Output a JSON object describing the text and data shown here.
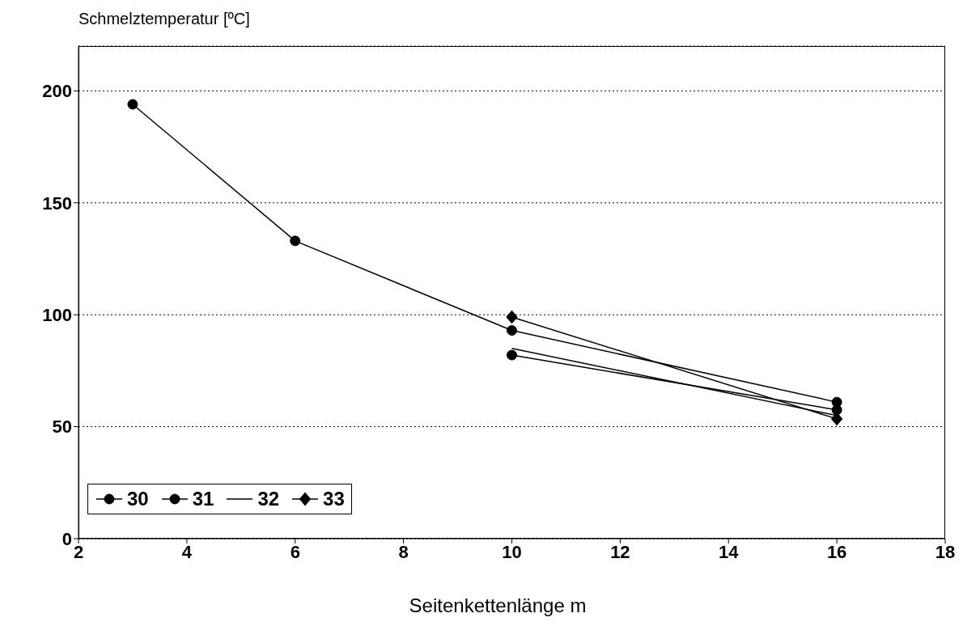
{
  "chart_data": {
    "type": "line",
    "xlabel": "Seitenkettenlänge m",
    "ylabel": "Schmelztemperatur [ºC]",
    "xlim": [
      2,
      18
    ],
    "xticks": [
      2,
      4,
      6,
      8,
      10,
      12,
      14,
      16,
      18
    ],
    "ylim": [
      0,
      220
    ],
    "yticks": [
      0,
      50,
      100,
      150,
      200
    ],
    "grid": "y",
    "legend": "bottom left",
    "line_style": "solid",
    "series": [
      {
        "name": "30",
        "color": "#000000",
        "marker": "circle",
        "x": [
          3,
          6,
          10,
          16
        ],
        "values": [
          194,
          133,
          93,
          61
        ]
      },
      {
        "name": "31",
        "color": "#000000",
        "marker": "circle",
        "x": [
          10,
          16
        ],
        "values": [
          82,
          57.5
        ]
      },
      {
        "name": "32",
        "color": "#000000",
        "marker": "none",
        "x": [
          10,
          16
        ],
        "values": [
          85,
          55
        ]
      },
      {
        "name": "33",
        "color": "#000000",
        "marker": "diamond",
        "x": [
          10,
          16
        ],
        "values": [
          99,
          53.5
        ]
      }
    ]
  }
}
